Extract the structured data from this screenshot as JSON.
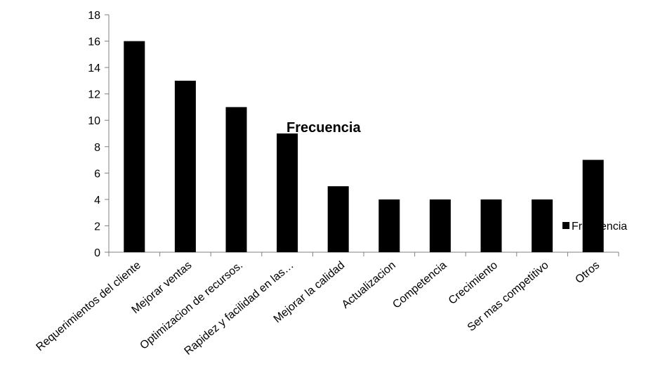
{
  "chart_data": {
    "type": "bar",
    "title": "Frecuencia",
    "categories": [
      "Requerimientos del cliente",
      "Mejorar ventas",
      "Optimizacion de recursos.",
      "Rapidez y facilidad en las…",
      "Mejorar la calidad",
      "Actualizacion",
      "Competencia",
      "Crecimiento",
      "Ser mas competitivo",
      "Otros"
    ],
    "series": [
      {
        "name": "Frecuencia",
        "values": [
          16,
          13,
          11,
          9,
          5,
          4,
          4,
          4,
          4,
          7
        ],
        "color": "#000000"
      }
    ],
    "ylim": [
      0,
      18
    ],
    "yticks": [
      0,
      2,
      4,
      6,
      8,
      10,
      12,
      14,
      16,
      18
    ],
    "grid": false,
    "legend": "right"
  }
}
